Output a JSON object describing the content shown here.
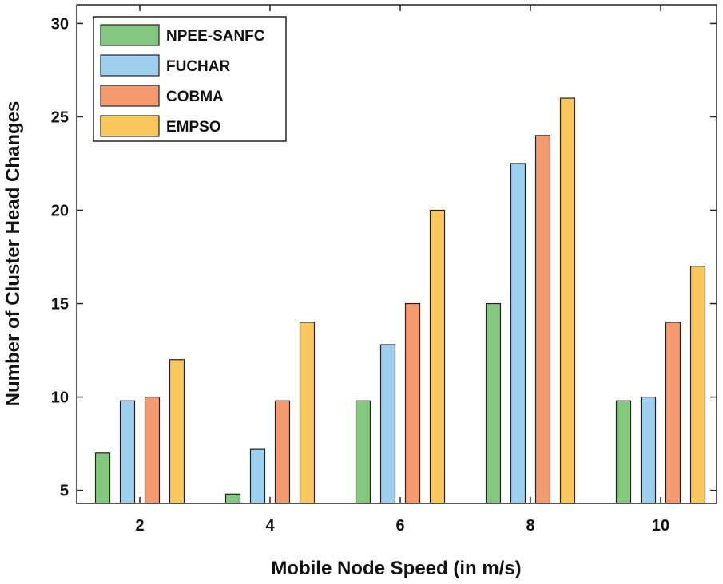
{
  "chart_data": {
    "type": "bar",
    "title": "",
    "xlabel": "Mobile Node Speed (in m/s)",
    "ylabel": "Number of Cluster Head Changes",
    "categories": [
      "2",
      "4",
      "6",
      "8",
      "10"
    ],
    "ylim": [
      4.3,
      31
    ],
    "yticks": [
      5,
      10,
      15,
      20,
      25,
      30
    ],
    "grid": false,
    "legend_position": "top-left",
    "series": [
      {
        "name": "NPEE-SANFC",
        "color": "#84c77e",
        "values": [
          7,
          4.8,
          9.8,
          15,
          9.8
        ]
      },
      {
        "name": "FUCHAR",
        "color": "#9dcfee",
        "values": [
          9.8,
          7.2,
          12.8,
          22.5,
          10
        ]
      },
      {
        "name": "COBMA",
        "color": "#f59a6e",
        "values": [
          10,
          9.8,
          15,
          24,
          14
        ]
      },
      {
        "name": "EMPSO",
        "color": "#fac75c",
        "values": [
          12,
          14,
          20,
          26,
          17
        ]
      }
    ]
  }
}
